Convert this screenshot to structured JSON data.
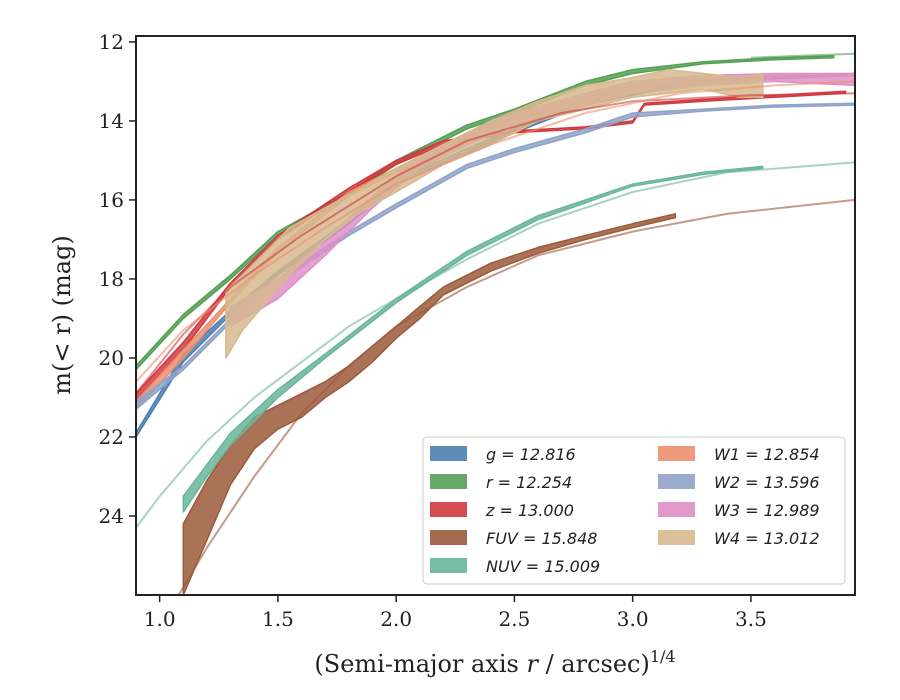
{
  "chart_data": {
    "type": "line",
    "xlabel_main": "(Semi-major axis ",
    "xlabel_var": "r",
    "xlabel_tail": " / arcsec)",
    "xlabel_exp": "1/4",
    "ylabel": "m(< r) (mag)",
    "xlim": [
      0.9,
      3.94
    ],
    "ylim": [
      26.0,
      11.85
    ],
    "xticks": [
      1.0,
      1.5,
      2.0,
      2.5,
      3.0,
      3.5
    ],
    "xtick_labels": [
      "1.0",
      "1.5",
      "2.0",
      "2.5",
      "3.0",
      "3.5"
    ],
    "yticks": [
      12,
      14,
      16,
      18,
      20,
      22,
      24
    ],
    "ytick_labels": [
      "12",
      "14",
      "16",
      "18",
      "20",
      "22",
      "24"
    ],
    "legend_position": "lower-right",
    "series": [
      {
        "name": "g = 12.816",
        "color": "#4c7fb0",
        "band": [
          [
            0.9,
            22.0,
            21.9
          ],
          [
            1.1,
            20.1,
            19.9
          ],
          [
            1.3,
            18.9,
            18.8
          ],
          [
            1.5,
            17.9,
            17.8
          ],
          [
            1.8,
            16.6,
            16.5
          ],
          [
            2.0,
            15.6,
            15.5
          ],
          [
            2.3,
            14.8,
            14.7
          ],
          [
            2.5,
            14.3,
            14.2
          ],
          [
            2.8,
            13.6,
            13.5
          ],
          [
            3.0,
            13.35,
            13.3
          ],
          [
            3.2,
            13.1,
            13.05
          ],
          [
            3.5,
            12.95,
            12.9
          ],
          [
            3.94,
            12.85,
            12.8
          ]
        ]
      },
      {
        "name": "r = 12.254",
        "color": "#55a055",
        "band": [
          [
            0.9,
            20.3,
            20.2
          ],
          [
            1.1,
            19.0,
            18.9
          ],
          [
            1.3,
            18.0,
            17.9
          ],
          [
            1.5,
            16.9,
            16.8
          ],
          [
            1.8,
            15.9,
            15.8
          ],
          [
            2.0,
            15.1,
            15.0
          ],
          [
            2.3,
            14.2,
            14.1
          ],
          [
            2.5,
            13.8,
            13.7
          ],
          [
            2.8,
            13.1,
            13.0
          ],
          [
            3.0,
            12.8,
            12.7
          ],
          [
            3.3,
            12.55,
            12.5
          ],
          [
            3.6,
            12.45,
            12.4
          ],
          [
            3.85,
            12.4,
            12.35
          ]
        ]
      },
      {
        "name": "z = 13.000",
        "color": "#d03a3f",
        "band": [
          [
            0.9,
            21.1,
            20.9
          ],
          [
            1.1,
            19.8,
            19.6
          ],
          [
            1.3,
            18.2,
            18.1
          ],
          [
            1.5,
            17.0,
            16.9
          ],
          [
            1.8,
            15.8,
            15.7
          ],
          [
            2.0,
            15.1,
            15.0
          ],
          [
            2.2,
            14.6,
            14.5
          ],
          [
            2.5,
            14.3,
            14.25
          ],
          [
            2.8,
            14.2,
            14.15
          ],
          [
            3.0,
            14.05,
            14.0
          ],
          [
            3.05,
            13.6,
            13.55
          ],
          [
            3.3,
            13.5,
            13.45
          ],
          [
            3.6,
            13.4,
            13.35
          ],
          [
            3.9,
            13.3,
            13.25
          ]
        ]
      },
      {
        "name": "FUV = 15.848",
        "color": "#9b5a3a",
        "band": [
          [
            1.1,
            24.2,
            26.0
          ],
          [
            1.2,
            23.1,
            24.6
          ],
          [
            1.3,
            22.2,
            23.2
          ],
          [
            1.4,
            21.5,
            22.3
          ],
          [
            1.5,
            21.2,
            21.8
          ],
          [
            1.6,
            20.9,
            21.5
          ],
          [
            1.7,
            20.6,
            21.0
          ],
          [
            1.8,
            20.2,
            20.6
          ],
          [
            1.9,
            19.7,
            20.1
          ],
          [
            2.0,
            19.2,
            19.5
          ],
          [
            2.1,
            18.7,
            19.0
          ],
          [
            2.2,
            18.2,
            18.4
          ],
          [
            2.4,
            17.6,
            17.8
          ],
          [
            2.6,
            17.2,
            17.35
          ],
          [
            2.8,
            16.9,
            17.0
          ],
          [
            3.0,
            16.6,
            16.7
          ],
          [
            3.18,
            16.35,
            16.45
          ]
        ]
      },
      {
        "name": "NUV = 15.009",
        "color": "#6ab59c",
        "band": [
          [
            1.1,
            23.5,
            23.9
          ],
          [
            1.2,
            22.7,
            23.0
          ],
          [
            1.3,
            21.9,
            22.2
          ],
          [
            1.5,
            20.8,
            21.0
          ],
          [
            1.7,
            19.9,
            20.0
          ],
          [
            2.0,
            18.5,
            18.6
          ],
          [
            2.3,
            17.3,
            17.4
          ],
          [
            2.6,
            16.4,
            16.5
          ],
          [
            3.0,
            15.6,
            15.65
          ],
          [
            3.3,
            15.3,
            15.35
          ],
          [
            3.55,
            15.15,
            15.2
          ]
        ]
      },
      {
        "name": "W1 = 12.854",
        "color": "#ec8f6e",
        "band": [
          [
            0.9,
            21.3,
            21.1
          ],
          [
            1.1,
            20.0,
            19.8
          ],
          [
            1.3,
            18.6,
            18.5
          ],
          [
            1.5,
            17.3,
            17.2
          ],
          [
            1.8,
            15.9,
            15.8
          ],
          [
            2.0,
            15.3,
            15.2
          ],
          [
            2.3,
            14.4,
            14.3
          ],
          [
            2.5,
            14.0,
            13.9
          ],
          [
            2.8,
            13.5,
            13.4
          ],
          [
            3.0,
            13.2,
            13.1
          ],
          [
            3.3,
            13.0,
            12.95
          ],
          [
            3.6,
            12.9,
            12.85
          ],
          [
            3.94,
            12.85,
            12.8
          ]
        ]
      },
      {
        "name": "W2 = 13.596",
        "color": "#8fa2c8",
        "band": [
          [
            0.9,
            21.3,
            21.1
          ],
          [
            1.1,
            20.3,
            20.2
          ],
          [
            1.3,
            19.1,
            19.0
          ],
          [
            1.5,
            18.1,
            18.0
          ],
          [
            1.8,
            16.9,
            16.8
          ],
          [
            2.0,
            16.2,
            16.1
          ],
          [
            2.3,
            15.2,
            15.1
          ],
          [
            2.5,
            14.8,
            14.7
          ],
          [
            2.8,
            14.3,
            14.2
          ],
          [
            3.0,
            13.9,
            13.8
          ],
          [
            3.3,
            13.75,
            13.7
          ],
          [
            3.6,
            13.65,
            13.6
          ],
          [
            3.94,
            13.6,
            13.55
          ]
        ]
      },
      {
        "name": "W3 = 12.989",
        "color": "#df8fc8",
        "band": [
          [
            1.3,
            19.2,
            18.7
          ],
          [
            1.5,
            18.5,
            18.0
          ],
          [
            1.7,
            17.4,
            17.0
          ],
          [
            1.9,
            16.2,
            15.9
          ],
          [
            2.1,
            15.2,
            14.9
          ],
          [
            2.3,
            14.6,
            14.3
          ],
          [
            2.5,
            14.1,
            13.8
          ],
          [
            2.8,
            13.6,
            13.3
          ],
          [
            3.0,
            13.3,
            13.0
          ],
          [
            3.3,
            13.1,
            12.85
          ],
          [
            3.6,
            13.0,
            12.8
          ],
          [
            3.94,
            13.1,
            12.8
          ]
        ]
      },
      {
        "name": "W4 = 13.012",
        "color": "#d7b98e",
        "band": [
          [
            1.28,
            20.0,
            18.3
          ],
          [
            1.35,
            19.3,
            17.9
          ],
          [
            1.45,
            18.6,
            17.3
          ],
          [
            1.55,
            17.9,
            16.7
          ],
          [
            1.7,
            17.0,
            16.2
          ],
          [
            1.85,
            16.3,
            15.7
          ],
          [
            2.0,
            15.8,
            15.2
          ],
          [
            2.2,
            15.1,
            14.6
          ],
          [
            2.4,
            14.6,
            14.0
          ],
          [
            2.6,
            14.0,
            13.5
          ],
          [
            2.8,
            13.7,
            13.1
          ],
          [
            3.0,
            13.4,
            12.9
          ],
          [
            3.15,
            13.3,
            12.7
          ],
          [
            3.3,
            13.2,
            12.8
          ],
          [
            3.45,
            13.4,
            12.9
          ],
          [
            3.55,
            13.4,
            12.8
          ]
        ]
      }
    ],
    "model_curves": [
      {
        "color": "#6ab59c",
        "points": [
          [
            0.9,
            24.3
          ],
          [
            1.0,
            23.5
          ],
          [
            1.2,
            22.1
          ],
          [
            1.4,
            21.0
          ],
          [
            1.6,
            20.1
          ],
          [
            1.8,
            19.2
          ],
          [
            2.0,
            18.5
          ],
          [
            2.3,
            17.5
          ],
          [
            2.6,
            16.6
          ],
          [
            3.0,
            15.8
          ],
          [
            3.4,
            15.3
          ],
          [
            3.94,
            15.05
          ]
        ]
      },
      {
        "color": "#9b5a3a",
        "points": [
          [
            1.08,
            26.0
          ],
          [
            1.2,
            24.8
          ],
          [
            1.4,
            23.0
          ],
          [
            1.6,
            21.4
          ],
          [
            1.8,
            20.2
          ],
          [
            2.0,
            19.2
          ],
          [
            2.3,
            18.2
          ],
          [
            2.6,
            17.4
          ],
          [
            3.0,
            16.8
          ],
          [
            3.4,
            16.35
          ],
          [
            3.94,
            16.0
          ]
        ]
      },
      {
        "color": "#55a055",
        "points": [
          [
            3.5,
            12.4
          ],
          [
            3.94,
            12.3
          ]
        ]
      },
      {
        "color": "#d03a3f",
        "points": [
          [
            0.9,
            20.9
          ],
          [
            1.1,
            19.4
          ],
          [
            1.3,
            18.2
          ],
          [
            1.6,
            16.9
          ],
          [
            2.0,
            15.4
          ],
          [
            2.3,
            14.5
          ],
          [
            2.7,
            13.8
          ],
          [
            3.0,
            13.5
          ],
          [
            3.5,
            13.35
          ],
          [
            3.94,
            13.3
          ]
        ]
      },
      {
        "color": "#ec8f6e",
        "points": [
          [
            0.9,
            20.6
          ],
          [
            1.1,
            19.3
          ],
          [
            1.4,
            17.9
          ],
          [
            1.7,
            16.7
          ],
          [
            2.0,
            15.6
          ],
          [
            2.4,
            14.6
          ],
          [
            2.8,
            13.8
          ],
          [
            3.2,
            13.3
          ],
          [
            3.6,
            13.1
          ],
          [
            3.94,
            13.0
          ]
        ]
      }
    ]
  }
}
